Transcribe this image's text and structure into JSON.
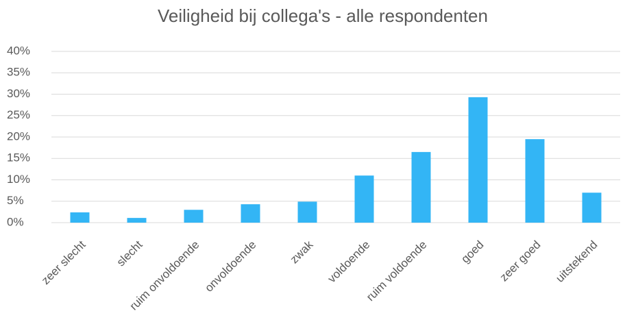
{
  "chart_data": {
    "type": "bar",
    "title": "Veiligheid bij collega's - alle respondenten",
    "categories": [
      "zeer slecht",
      "slecht",
      "ruim onvoldoende",
      "onvoldoende",
      "zwak",
      "voldoende",
      "ruim voldoende",
      "goed",
      "zeer goed",
      "uitstekend"
    ],
    "values": [
      2.4,
      1.1,
      3.0,
      4.3,
      4.9,
      11.0,
      16.5,
      29.3,
      19.5,
      7.0
    ],
    "color": "#33b5f5",
    "ylim": [
      0,
      40
    ],
    "yticks": [
      {
        "value": 0,
        "label": "0%"
      },
      {
        "value": 5,
        "label": "5%"
      },
      {
        "value": 10,
        "label": "10%"
      },
      {
        "value": 15,
        "label": "15%"
      },
      {
        "value": 20,
        "label": "20%"
      },
      {
        "value": 25,
        "label": "25%"
      },
      {
        "value": 30,
        "label": "30%"
      },
      {
        "value": 35,
        "label": "35%"
      },
      {
        "value": 40,
        "label": "40%"
      }
    ],
    "grid": true
  }
}
